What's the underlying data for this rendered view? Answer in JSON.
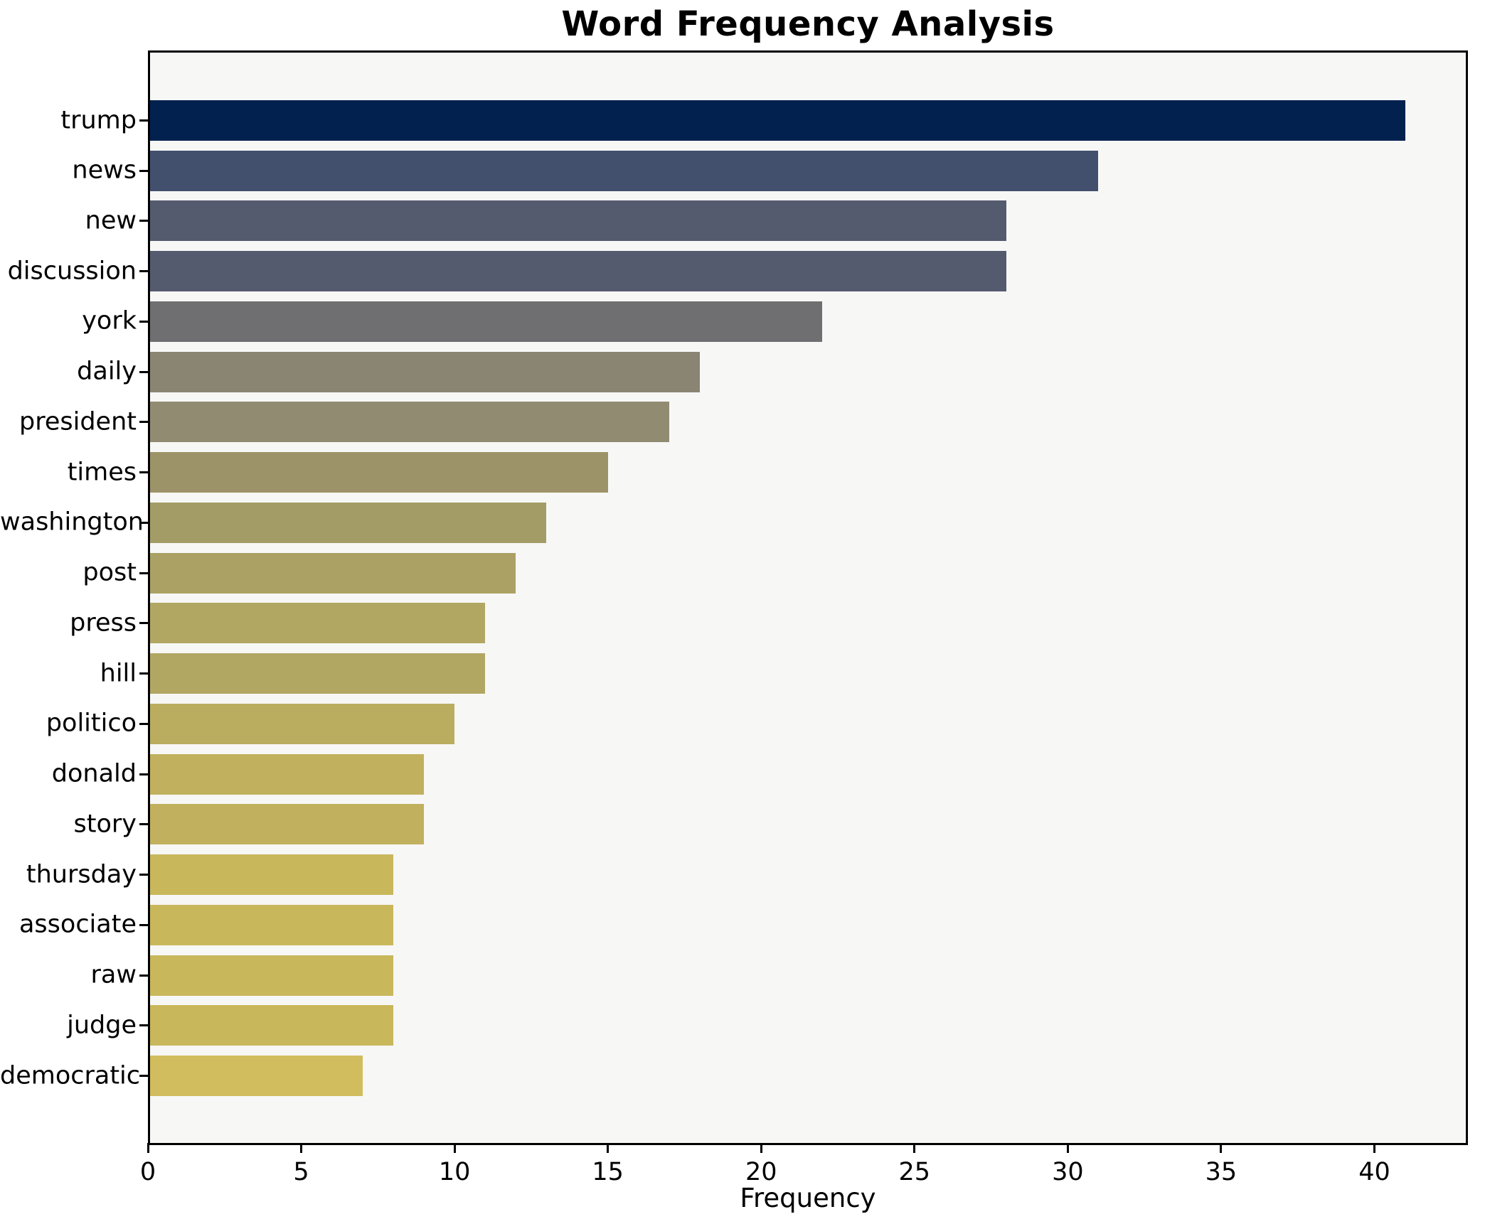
{
  "chart_data": {
    "type": "bar",
    "orientation": "horizontal",
    "title": "Word Frequency Analysis",
    "xlabel": "Frequency",
    "ylabel": "",
    "categories": [
      "trump",
      "news",
      "new",
      "discussion",
      "york",
      "daily",
      "president",
      "times",
      "washington",
      "post",
      "press",
      "hill",
      "politico",
      "donald",
      "story",
      "thursday",
      "associate",
      "raw",
      "judge",
      "democratic"
    ],
    "values": [
      41,
      31,
      28,
      28,
      22,
      18,
      17,
      15,
      13,
      12,
      11,
      11,
      10,
      9,
      9,
      8,
      8,
      8,
      8,
      7
    ],
    "bar_colors": [
      "#02214f",
      "#42506e",
      "#545b6f",
      "#545b6f",
      "#6f6e71",
      "#8a8572",
      "#918b71",
      "#9c9368",
      "#a49c66",
      "#aba165",
      "#b1a763",
      "#b1a763",
      "#bbad5f",
      "#c1b15e",
      "#c1b15e",
      "#c9b75b",
      "#c9b75b",
      "#c9b75b",
      "#c9b75b",
      "#d1bd5e"
    ],
    "x_ticks": [
      0,
      5,
      10,
      15,
      20,
      25,
      30,
      35,
      40
    ],
    "xlim": [
      0,
      43.05
    ],
    "grid": false,
    "legend": "none",
    "colors": {
      "figure_background": "#ffffff",
      "axes_background": "#f7f7f6",
      "spine": "#000000",
      "text": "#000000"
    }
  }
}
